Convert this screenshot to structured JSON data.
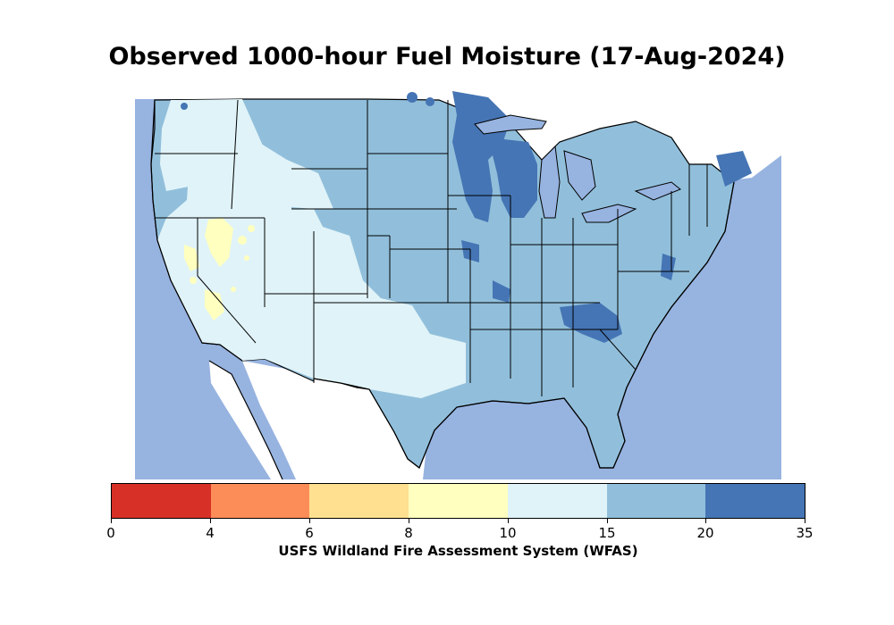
{
  "title": "Observed 1000-hour Fuel Moisture (17-Aug-2024)",
  "source": "USFS Wildland Fire Assessment System (WFAS)",
  "colorbar": {
    "bins": [
      {
        "from": 0,
        "to": 4,
        "color": "#d73027"
      },
      {
        "from": 4,
        "to": 6,
        "color": "#fc8d59"
      },
      {
        "from": 6,
        "to": 8,
        "color": "#fee090"
      },
      {
        "from": 8,
        "to": 10,
        "color": "#ffffbf"
      },
      {
        "from": 10,
        "to": 15,
        "color": "#e0f3f8"
      },
      {
        "from": 15,
        "to": 20,
        "color": "#91bfdb"
      },
      {
        "from": 20,
        "to": 35,
        "color": "#4575b4"
      }
    ],
    "tick_labels": [
      "0",
      "4",
      "6",
      "8",
      "10",
      "15",
      "20",
      "35"
    ]
  },
  "colors": {
    "water": "#97b3e0",
    "land_outside": "#ffffff"
  }
}
